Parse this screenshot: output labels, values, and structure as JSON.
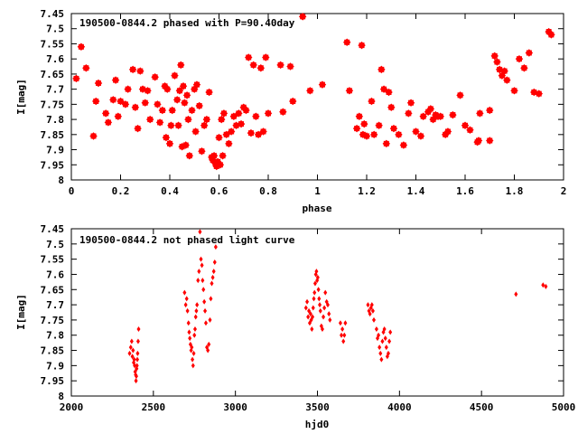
{
  "chart_data": [
    {
      "type": "scatter",
      "title": "190500-0844.2 phased with P=90.40day",
      "xlabel": "phase",
      "ylabel": "I[mag]",
      "xlim": [
        0,
        2
      ],
      "ylim": [
        7.45,
        8
      ],
      "y_inverted": true,
      "grid": false,
      "marker": "star",
      "color": "#ff0000",
      "x_ticks": [
        0,
        0.2,
        0.4,
        0.6,
        0.8,
        1,
        1.2,
        1.4,
        1.6,
        1.8,
        2
      ],
      "x_tick_labels": [
        "0",
        "0.2",
        "0.4",
        "0.6",
        "0.8",
        "1",
        "1.2",
        "1.4",
        "1.6",
        "1.8",
        "2"
      ],
      "y_ticks": [
        7.45,
        7.5,
        7.55,
        7.6,
        7.65,
        7.7,
        7.75,
        7.8,
        7.85,
        7.9,
        7.95,
        8
      ],
      "y_tick_labels": [
        "7.45",
        "7.5",
        "7.55",
        "7.6",
        "7.65",
        "7.7",
        "7.75",
        "7.8",
        "7.85",
        "7.9",
        "7.95",
        "8"
      ],
      "points": [
        [
          0.02,
          7.665
        ],
        [
          0.04,
          7.56
        ],
        [
          0.06,
          7.63
        ],
        [
          0.09,
          7.855
        ],
        [
          0.1,
          7.74
        ],
        [
          0.11,
          7.68
        ],
        [
          0.14,
          7.78
        ],
        [
          0.15,
          7.81
        ],
        [
          0.17,
          7.735
        ],
        [
          0.18,
          7.67
        ],
        [
          0.19,
          7.79
        ],
        [
          0.2,
          7.74
        ],
        [
          0.22,
          7.75
        ],
        [
          0.23,
          7.7
        ],
        [
          0.25,
          7.635
        ],
        [
          0.26,
          7.76
        ],
        [
          0.27,
          7.83
        ],
        [
          0.28,
          7.64
        ],
        [
          0.29,
          7.7
        ],
        [
          0.3,
          7.745
        ],
        [
          0.31,
          7.705
        ],
        [
          0.32,
          7.8
        ],
        [
          0.34,
          7.66
        ],
        [
          0.35,
          7.75
        ],
        [
          0.36,
          7.81
        ],
        [
          0.37,
          7.77
        ],
        [
          0.38,
          7.69
        ],
        [
          0.385,
          7.86
        ],
        [
          0.39,
          7.7
        ],
        [
          0.4,
          7.88
        ],
        [
          0.405,
          7.82
        ],
        [
          0.41,
          7.77
        ],
        [
          0.42,
          7.655
        ],
        [
          0.43,
          7.735
        ],
        [
          0.435,
          7.82
        ],
        [
          0.44,
          7.705
        ],
        [
          0.445,
          7.62
        ],
        [
          0.45,
          7.89
        ],
        [
          0.455,
          7.69
        ],
        [
          0.46,
          7.745
        ],
        [
          0.465,
          7.885
        ],
        [
          0.47,
          7.72
        ],
        [
          0.475,
          7.8
        ],
        [
          0.48,
          7.92
        ],
        [
          0.49,
          7.77
        ],
        [
          0.5,
          7.7
        ],
        [
          0.505,
          7.84
        ],
        [
          0.51,
          7.685
        ],
        [
          0.52,
          7.755
        ],
        [
          0.53,
          7.905
        ],
        [
          0.54,
          7.82
        ],
        [
          0.55,
          7.8
        ],
        [
          0.56,
          7.71
        ],
        [
          0.57,
          7.925
        ],
        [
          0.575,
          7.935
        ],
        [
          0.58,
          7.92
        ],
        [
          0.585,
          7.945
        ],
        [
          0.59,
          7.955
        ],
        [
          0.595,
          7.94
        ],
        [
          0.6,
          7.86
        ],
        [
          0.605,
          7.95
        ],
        [
          0.61,
          7.8
        ],
        [
          0.615,
          7.92
        ],
        [
          0.62,
          7.78
        ],
        [
          0.63,
          7.85
        ],
        [
          0.64,
          7.88
        ],
        [
          0.65,
          7.84
        ],
        [
          0.66,
          7.79
        ],
        [
          0.67,
          7.82
        ],
        [
          0.68,
          7.78
        ],
        [
          0.69,
          7.815
        ],
        [
          0.7,
          7.76
        ],
        [
          0.71,
          7.77
        ],
        [
          0.72,
          7.595
        ],
        [
          0.73,
          7.845
        ],
        [
          0.74,
          7.62
        ],
        [
          0.75,
          7.79
        ],
        [
          0.76,
          7.85
        ],
        [
          0.77,
          7.63
        ],
        [
          0.78,
          7.84
        ],
        [
          0.79,
          7.595
        ],
        [
          0.8,
          7.78
        ],
        [
          0.85,
          7.62
        ],
        [
          0.86,
          7.775
        ],
        [
          0.89,
          7.625
        ],
        [
          0.9,
          7.74
        ],
        [
          0.94,
          7.46
        ],
        [
          0.97,
          7.705
        ],
        [
          1.02,
          7.685
        ],
        [
          1.12,
          7.545
        ],
        [
          1.13,
          7.705
        ],
        [
          1.16,
          7.83
        ],
        [
          1.17,
          7.79
        ],
        [
          1.18,
          7.555
        ],
        [
          1.185,
          7.85
        ],
        [
          1.19,
          7.815
        ],
        [
          1.2,
          7.855
        ],
        [
          1.22,
          7.74
        ],
        [
          1.23,
          7.85
        ],
        [
          1.25,
          7.82
        ],
        [
          1.26,
          7.635
        ],
        [
          1.27,
          7.7
        ],
        [
          1.28,
          7.88
        ],
        [
          1.29,
          7.71
        ],
        [
          1.3,
          7.76
        ],
        [
          1.31,
          7.83
        ],
        [
          1.33,
          7.85
        ],
        [
          1.35,
          7.885
        ],
        [
          1.37,
          7.78
        ],
        [
          1.38,
          7.745
        ],
        [
          1.4,
          7.84
        ],
        [
          1.42,
          7.855
        ],
        [
          1.43,
          7.79
        ],
        [
          1.45,
          7.775
        ],
        [
          1.46,
          7.765
        ],
        [
          1.47,
          7.8
        ],
        [
          1.48,
          7.785
        ],
        [
          1.49,
          7.79
        ],
        [
          1.5,
          7.79
        ],
        [
          1.52,
          7.85
        ],
        [
          1.53,
          7.84
        ],
        [
          1.55,
          7.785
        ],
        [
          1.58,
          7.72
        ],
        [
          1.6,
          7.82
        ],
        [
          1.62,
          7.835
        ],
        [
          1.65,
          7.875
        ],
        [
          1.655,
          7.87
        ],
        [
          1.66,
          7.78
        ],
        [
          1.7,
          7.77
        ],
        [
          1.7,
          7.87
        ],
        [
          1.72,
          7.59
        ],
        [
          1.73,
          7.61
        ],
        [
          1.74,
          7.635
        ],
        [
          1.75,
          7.655
        ],
        [
          1.76,
          7.64
        ],
        [
          1.77,
          7.67
        ],
        [
          1.8,
          7.705
        ],
        [
          1.82,
          7.6
        ],
        [
          1.84,
          7.63
        ],
        [
          1.86,
          7.58
        ],
        [
          1.88,
          7.71
        ],
        [
          1.9,
          7.715
        ],
        [
          1.94,
          7.51
        ],
        [
          1.95,
          7.52
        ]
      ]
    },
    {
      "type": "scatter",
      "title": "190500-0844.2 not phased light curve",
      "xlabel": "hjd0",
      "ylabel": "I[mag]",
      "xlim": [
        2000,
        5000
      ],
      "ylim": [
        7.45,
        8
      ],
      "y_inverted": true,
      "grid": false,
      "marker": "diamond",
      "color": "#ff0000",
      "x_ticks": [
        2000,
        2500,
        3000,
        3500,
        4000,
        4500,
        5000
      ],
      "x_tick_labels": [
        "2000",
        "2500",
        "3000",
        "3500",
        "4000",
        "4500",
        "5000"
      ],
      "y_ticks": [
        7.45,
        7.5,
        7.55,
        7.6,
        7.65,
        7.7,
        7.75,
        7.8,
        7.85,
        7.9,
        7.95,
        8
      ],
      "y_tick_labels": [
        "7.45",
        "7.5",
        "7.55",
        "7.6",
        "7.65",
        "7.7",
        "7.75",
        "7.8",
        "7.85",
        "7.9",
        "7.95",
        "8"
      ],
      "points": [
        [
          2355,
          7.86
        ],
        [
          2362,
          7.84
        ],
        [
          2368,
          7.82
        ],
        [
          2372,
          7.87
        ],
        [
          2376,
          7.85
        ],
        [
          2380,
          7.89
        ],
        [
          2383,
          7.88
        ],
        [
          2386,
          7.9
        ],
        [
          2389,
          7.92
        ],
        [
          2392,
          7.93
        ],
        [
          2394,
          7.95
        ],
        [
          2396,
          7.935
        ],
        [
          2398,
          7.91
        ],
        [
          2400,
          7.9
        ],
        [
          2402,
          7.88
        ],
        [
          2404,
          7.86
        ],
        [
          2407,
          7.82
        ],
        [
          2410,
          7.78
        ],
        [
          2690,
          7.66
        ],
        [
          2697,
          7.7
        ],
        [
          2703,
          7.68
        ],
        [
          2708,
          7.72
        ],
        [
          2714,
          7.76
        ],
        [
          2718,
          7.79
        ],
        [
          2722,
          7.81
        ],
        [
          2726,
          7.83
        ],
        [
          2730,
          7.85
        ],
        [
          2734,
          7.84
        ],
        [
          2738,
          7.88
        ],
        [
          2742,
          7.9
        ],
        [
          2746,
          7.86
        ],
        [
          2750,
          7.8
        ],
        [
          2754,
          7.78
        ],
        [
          2758,
          7.74
        ],
        [
          2762,
          7.72
        ],
        [
          2766,
          7.7
        ],
        [
          2772,
          7.62
        ],
        [
          2778,
          7.59
        ],
        [
          2784,
          7.46
        ],
        [
          2790,
          7.55
        ],
        [
          2796,
          7.57
        ],
        [
          2800,
          7.62
        ],
        [
          2805,
          7.65
        ],
        [
          2810,
          7.69
        ],
        [
          2815,
          7.72
        ],
        [
          2820,
          7.76
        ],
        [
          2826,
          7.84
        ],
        [
          2832,
          7.85
        ],
        [
          2838,
          7.83
        ],
        [
          2845,
          7.75
        ],
        [
          2850,
          7.68
        ],
        [
          2856,
          7.63
        ],
        [
          2862,
          7.61
        ],
        [
          2868,
          7.59
        ],
        [
          2874,
          7.56
        ],
        [
          2880,
          7.51
        ],
        [
          3430,
          7.71
        ],
        [
          3437,
          7.69
        ],
        [
          3443,
          7.74
        ],
        [
          3448,
          7.72
        ],
        [
          3453,
          7.76
        ],
        [
          3458,
          7.73
        ],
        [
          3462,
          7.75
        ],
        [
          3466,
          7.78
        ],
        [
          3470,
          7.74
        ],
        [
          3474,
          7.71
        ],
        [
          3478,
          7.68
        ],
        [
          3482,
          7.66
        ],
        [
          3486,
          7.63
        ],
        [
          3490,
          7.6
        ],
        [
          3494,
          7.59
        ],
        [
          3498,
          7.62
        ],
        [
          3502,
          7.61
        ],
        [
          3506,
          7.65
        ],
        [
          3510,
          7.68
        ],
        [
          3514,
          7.7
        ],
        [
          3518,
          7.72
        ],
        [
          3524,
          7.77
        ],
        [
          3530,
          7.78
        ],
        [
          3536,
          7.74
        ],
        [
          3542,
          7.71
        ],
        [
          3548,
          7.66
        ],
        [
          3556,
          7.69
        ],
        [
          3563,
          7.7
        ],
        [
          3570,
          7.73
        ],
        [
          3576,
          7.75
        ],
        [
          3640,
          7.76
        ],
        [
          3646,
          7.8
        ],
        [
          3652,
          7.78
        ],
        [
          3658,
          7.82
        ],
        [
          3664,
          7.8
        ],
        [
          3670,
          7.76
        ],
        [
          3808,
          7.7
        ],
        [
          3814,
          7.72
        ],
        [
          3820,
          7.73
        ],
        [
          3826,
          7.71
        ],
        [
          3832,
          7.7
        ],
        [
          3838,
          7.72
        ],
        [
          3844,
          7.75
        ],
        [
          3860,
          7.78
        ],
        [
          3866,
          7.81
        ],
        [
          3872,
          7.8
        ],
        [
          3878,
          7.84
        ],
        [
          3884,
          7.86
        ],
        [
          3890,
          7.88
        ],
        [
          3896,
          7.82
        ],
        [
          3902,
          7.79
        ],
        [
          3908,
          7.78
        ],
        [
          3914,
          7.81
        ],
        [
          3920,
          7.84
        ],
        [
          3926,
          7.87
        ],
        [
          3932,
          7.86
        ],
        [
          3938,
          7.82
        ],
        [
          3944,
          7.79
        ],
        [
          4710,
          7.665
        ],
        [
          4875,
          7.635
        ],
        [
          4892,
          7.64
        ]
      ]
    }
  ]
}
